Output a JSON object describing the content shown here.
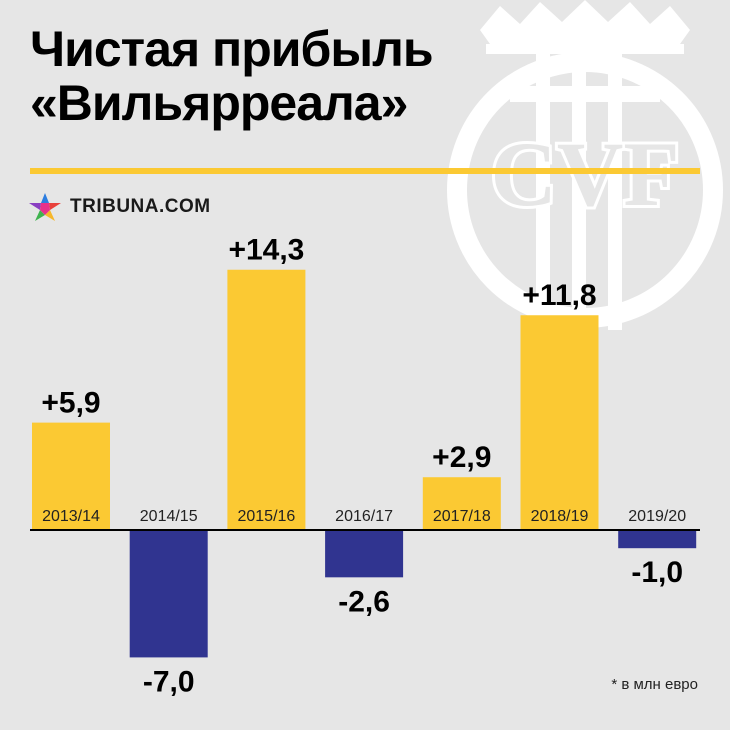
{
  "title": {
    "line1": "Чистая прибыль",
    "line2": "«Вильярреала»"
  },
  "brand": {
    "name": "TRIBUNA.COM",
    "icon": "star-logo-icon"
  },
  "crest": {
    "letters": "CVF",
    "icon": "villarreal-crest-icon"
  },
  "footnote": "* в млн евро",
  "colors": {
    "background": "#e6e6e6",
    "positive": "#fbc933",
    "negative": "#303490",
    "rule": "#fbc933",
    "crest": "#ffffff"
  },
  "chart_data": {
    "type": "bar",
    "categories": [
      "2013/14",
      "2014/15",
      "2015/16",
      "2016/17",
      "2017/18",
      "2018/19",
      "2019/20"
    ],
    "values": [
      5.9,
      -7.0,
      14.3,
      -2.6,
      2.9,
      11.8,
      -1.0
    ],
    "value_labels": [
      "+5,9",
      "-7,0",
      "+14,3",
      "-2,6",
      "+2,9",
      "+11,8",
      "-1,0"
    ],
    "unit": "в млн евро",
    "title": "Чистая прибыль «Вильярреала»",
    "xlabel": "",
    "ylabel": "",
    "grid": false,
    "legend": "none"
  }
}
